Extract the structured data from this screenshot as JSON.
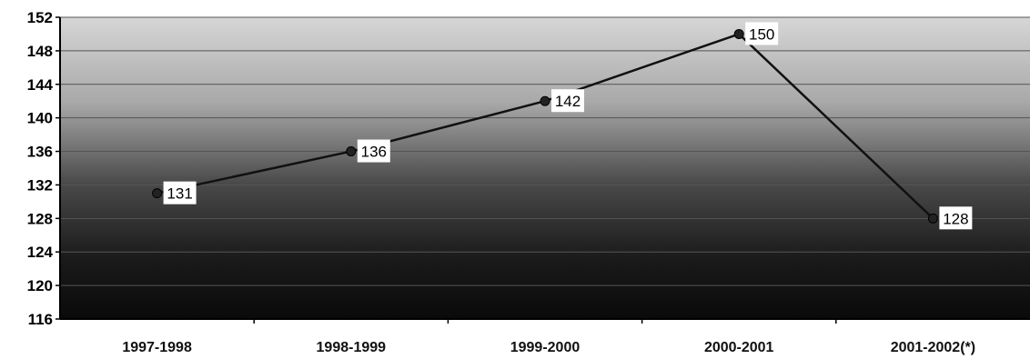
{
  "chart_data": {
    "type": "line",
    "title": "",
    "xlabel": "",
    "ylabel": "",
    "categories": [
      "1997-1998",
      "1998-1999",
      "1999-2000",
      "2000-2001",
      "2001-2002(*)"
    ],
    "series": [
      {
        "values": [
          131,
          136,
          142,
          150,
          128
        ]
      }
    ],
    "data_labels": [
      "131",
      "136",
      "142",
      "150",
      "128"
    ],
    "ylim": [
      116,
      152
    ],
    "yticks": [
      "116",
      "120",
      "124",
      "128",
      "132",
      "136",
      "140",
      "144",
      "148",
      "152"
    ],
    "grid": true,
    "legend": "none",
    "colors": {
      "line": "#111111",
      "marker": "#222222",
      "plot_bg_top": "#d4d4d4",
      "plot_bg_bottom": "#0a0a0a",
      "gridline": "#555555"
    }
  }
}
